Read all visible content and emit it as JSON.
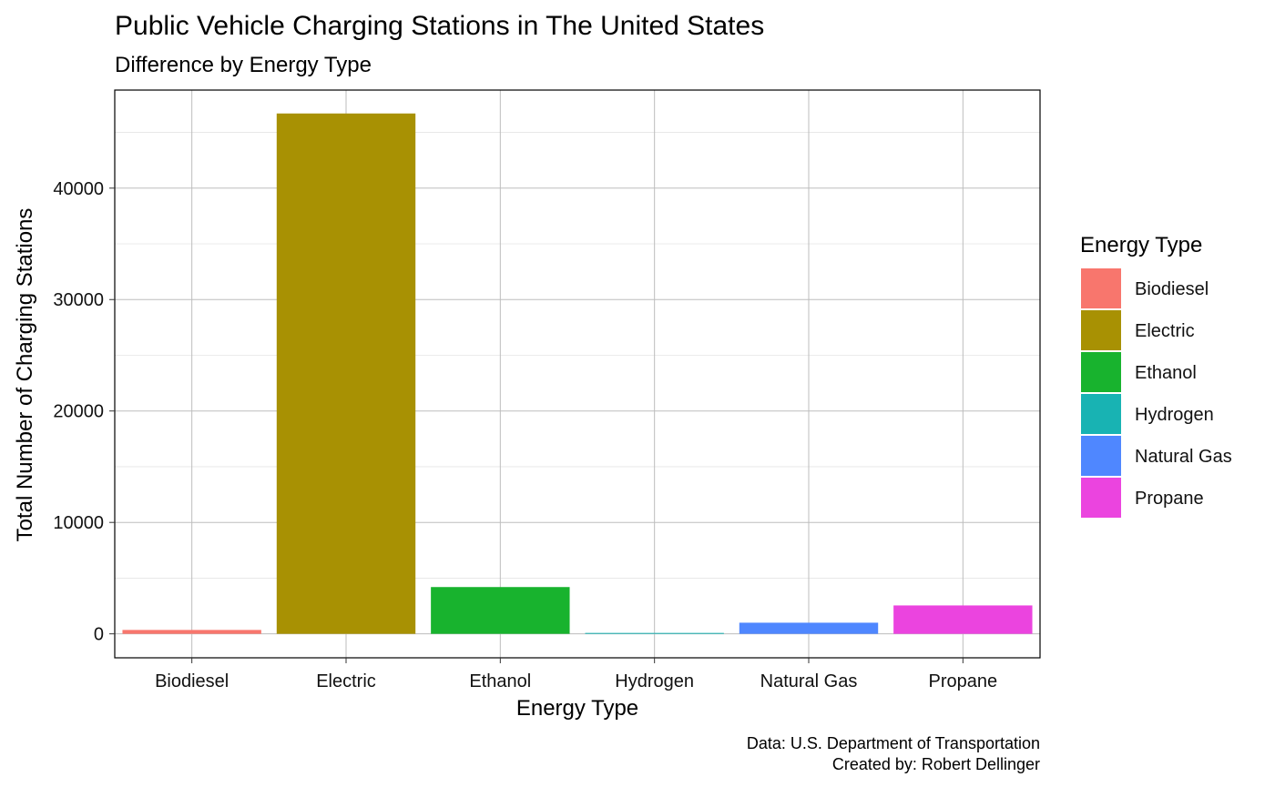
{
  "chart_data": {
    "type": "bar",
    "title": "Public Vehicle Charging Stations in The United States",
    "subtitle": "Difference by Energy Type",
    "xlabel": "Energy Type",
    "ylabel": "Total Number of Charging Stations",
    "categories": [
      "Biodiesel",
      "Electric",
      "Ethanol",
      "Hydrogen",
      "Natural Gas",
      "Propane"
    ],
    "values": [
      350,
      46700,
      4200,
      60,
      1000,
      2550
    ],
    "colors": [
      "#F8766D",
      "#A89103",
      "#18B32E",
      "#18B3B3",
      "#4F87FF",
      "#EB44DF"
    ],
    "ylim": [
      -2150,
      48800
    ],
    "yticks": [
      0,
      10000,
      20000,
      30000,
      40000
    ],
    "ytick_labels": [
      "0",
      "10000",
      "20000",
      "30000",
      "40000"
    ],
    "grid": true,
    "legend": {
      "title": "Energy Type",
      "position": "right",
      "items": [
        "Biodiesel",
        "Electric",
        "Ethanol",
        "Hydrogen",
        "Natural Gas",
        "Propane"
      ]
    },
    "caption": [
      "Data: U.S. Department of Transportation",
      "Created by: Robert Dellinger"
    ]
  }
}
